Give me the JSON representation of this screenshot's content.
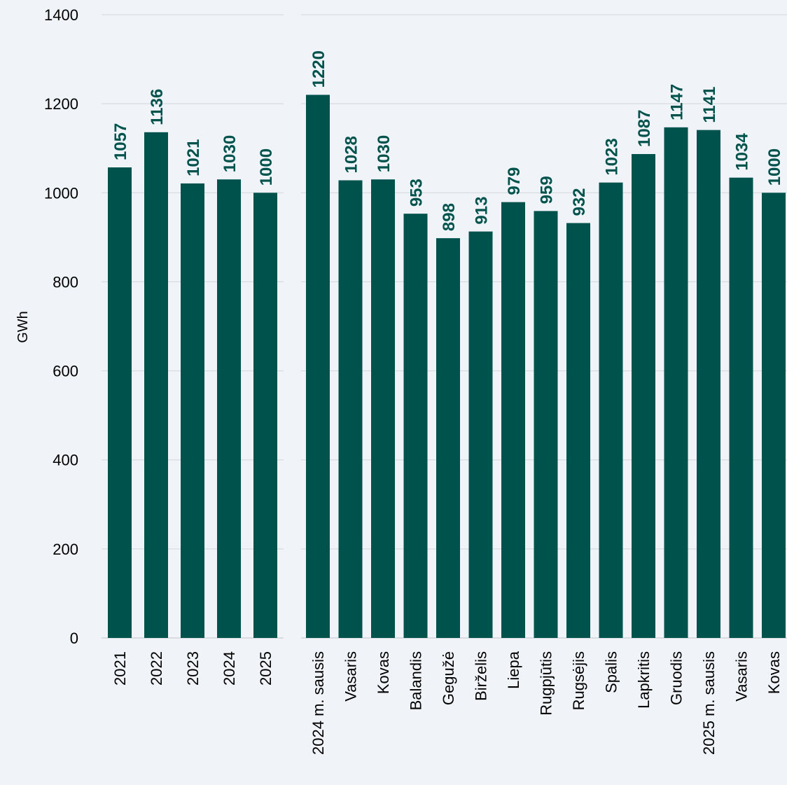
{
  "chart_data": [
    {
      "type": "bar",
      "ylabel": "GWh",
      "ylim": [
        0,
        1400
      ],
      "yticks": [
        0,
        200,
        400,
        600,
        800,
        1000,
        1200,
        1400
      ],
      "grid": true,
      "bar_color": "#00524d",
      "label_color": "#00524d",
      "categories": [
        "2021",
        "2022",
        "2023",
        "2024",
        "2025"
      ],
      "values": [
        1057,
        1136,
        1021,
        1030,
        1000
      ]
    },
    {
      "type": "bar",
      "ylim": [
        0,
        1400
      ],
      "grid": true,
      "bar_color": "#00524d",
      "label_color": "#00524d",
      "categories": [
        "2024 m. sausis",
        "Vasaris",
        "Kovas",
        "Balandis",
        "Gegužė",
        "Birželis",
        "Liepa",
        "Rugpjūtis",
        "Rugsėjis",
        "Spalis",
        "Lapkritis",
        "Gruodis",
        "2025 m. sausis",
        "Vasaris",
        "Kovas"
      ],
      "values": [
        1220,
        1028,
        1030,
        953,
        898,
        913,
        979,
        959,
        932,
        1023,
        1087,
        1147,
        1141,
        1034,
        1000
      ]
    }
  ]
}
